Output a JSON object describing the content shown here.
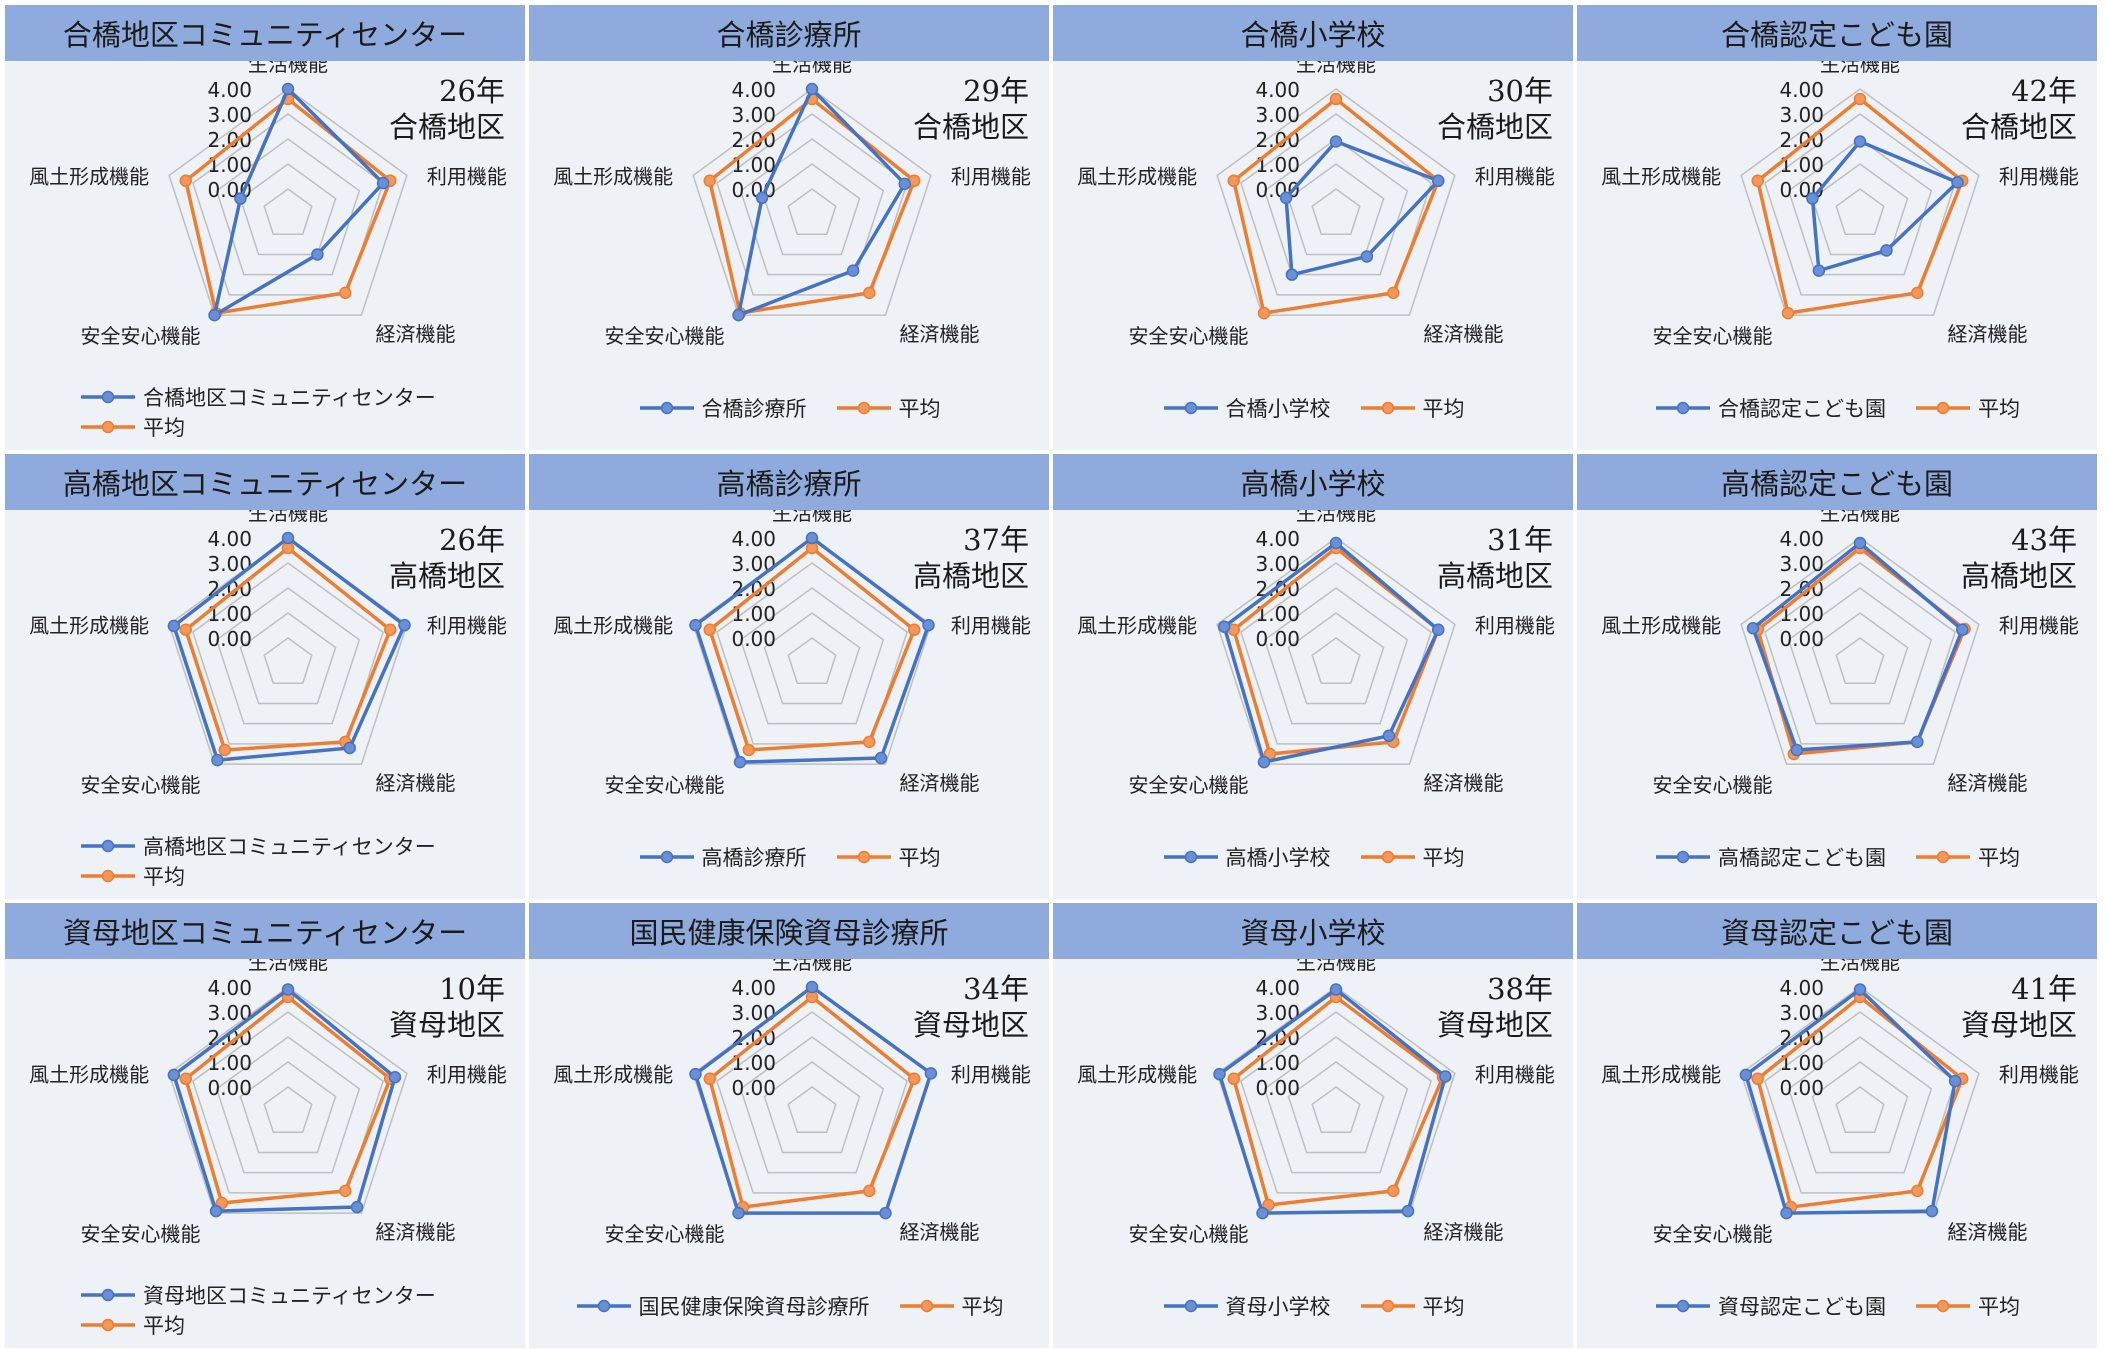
{
  "colors": {
    "facility": "#4472c4",
    "average": "#ed7d31",
    "header": "#8faadc",
    "grid": "#bfbfbf",
    "panel_bg": "#eef1f6"
  },
  "chart_data": [
    {
      "type": "radar",
      "title": "合橋地区コミュニティセンター",
      "age": "26年",
      "district": "合橋地区",
      "axes": [
        "生活機能",
        "利用機能",
        "経済機能",
        "安全安心機能",
        "風土形成機能"
      ],
      "ticks": [
        "4.00",
        "3.00",
        "2.00",
        "1.00",
        "0.00"
      ],
      "rmax": 4,
      "series": [
        {
          "name": "合橋地区コミュニティセンター",
          "values": [
            4.0,
            3.0,
            1.0,
            4.0,
            1.0
          ]
        },
        {
          "name": "平均",
          "values": [
            3.6,
            3.3,
            2.9,
            3.9,
            3.3
          ]
        }
      ]
    },
    {
      "type": "radar",
      "title": "合橋診療所",
      "age": "29年",
      "district": "合橋地区",
      "axes": [
        "生活機能",
        "利用機能",
        "経済機能",
        "安全安心機能",
        "風土形成機能"
      ],
      "ticks": [
        "4.00",
        "3.00",
        "2.00",
        "1.00",
        "0.00"
      ],
      "rmax": 4,
      "series": [
        {
          "name": "合橋診療所",
          "values": [
            4.0,
            2.9,
            1.8,
            4.0,
            1.1
          ]
        },
        {
          "name": "平均",
          "values": [
            3.6,
            3.3,
            2.9,
            3.9,
            3.3
          ]
        }
      ]
    },
    {
      "type": "radar",
      "title": "合橋小学校",
      "age": "30年",
      "district": "合橋地区",
      "axes": [
        "生活機能",
        "利用機能",
        "経済機能",
        "安全安心機能",
        "風土形成機能"
      ],
      "ticks": [
        "4.00",
        "3.00",
        "2.00",
        "1.00",
        "0.00"
      ],
      "rmax": 4,
      "series": [
        {
          "name": "合橋小学校",
          "values": [
            1.9,
            3.3,
            1.1,
            2.0,
            1.1
          ]
        },
        {
          "name": "平均",
          "values": [
            3.6,
            3.3,
            2.9,
            3.9,
            3.3
          ]
        }
      ]
    },
    {
      "type": "radar",
      "title": "合橋認定こども園",
      "age": "42年",
      "district": "合橋地区",
      "axes": [
        "生活機能",
        "利用機能",
        "経済機能",
        "安全安心機能",
        "風土形成機能"
      ],
      "ticks": [
        "4.00",
        "3.00",
        "2.00",
        "1.00",
        "0.00"
      ],
      "rmax": 4,
      "series": [
        {
          "name": "合橋認定こども園",
          "values": [
            1.9,
            3.1,
            0.8,
            1.8,
            1.0
          ]
        },
        {
          "name": "平均",
          "values": [
            3.6,
            3.3,
            2.9,
            3.9,
            3.3
          ]
        }
      ]
    },
    {
      "type": "radar",
      "title": "高橋地区コミュニティセンター",
      "age": "26年",
      "district": "高橋地区",
      "axes": [
        "生活機能",
        "利用機能",
        "経済機能",
        "安全安心機能",
        "風土形成機能"
      ],
      "ticks": [
        "4.00",
        "3.00",
        "2.00",
        "1.00",
        "0.00"
      ],
      "rmax": 4,
      "series": [
        {
          "name": "高橋地区コミュニティセンター",
          "values": [
            4.0,
            3.9,
            3.2,
            3.8,
            3.8
          ]
        },
        {
          "name": "平均",
          "values": [
            3.6,
            3.3,
            2.9,
            3.3,
            3.3
          ]
        }
      ]
    },
    {
      "type": "radar",
      "title": "高橋診療所",
      "age": "37年",
      "district": "高橋地区",
      "axes": [
        "生活機能",
        "利用機能",
        "経済機能",
        "安全安心機能",
        "風土形成機能"
      ],
      "ticks": [
        "4.00",
        "3.00",
        "2.00",
        "1.00",
        "0.00"
      ],
      "rmax": 4,
      "series": [
        {
          "name": "高橋診療所",
          "values": [
            4.0,
            3.9,
            3.7,
            3.9,
            3.9
          ]
        },
        {
          "name": "平均",
          "values": [
            3.6,
            3.3,
            2.9,
            3.3,
            3.3
          ]
        }
      ]
    },
    {
      "type": "radar",
      "title": "高橋小学校",
      "age": "31年",
      "district": "高橋地区",
      "axes": [
        "生活機能",
        "利用機能",
        "経済機能",
        "安全安心機能",
        "風土形成機能"
      ],
      "ticks": [
        "4.00",
        "3.00",
        "2.00",
        "1.00",
        "0.00"
      ],
      "rmax": 4,
      "series": [
        {
          "name": "高橋小学校",
          "values": [
            3.8,
            3.3,
            2.6,
            3.9,
            3.7
          ]
        },
        {
          "name": "平均",
          "values": [
            3.6,
            3.3,
            2.9,
            3.5,
            3.3
          ]
        }
      ]
    },
    {
      "type": "radar",
      "title": "高橋認定こども園",
      "age": "43年",
      "district": "高橋地区",
      "axes": [
        "生活機能",
        "利用機能",
        "経済機能",
        "安全安心機能",
        "風土形成機能"
      ],
      "ticks": [
        "4.00",
        "3.00",
        "2.00",
        "1.00",
        "0.00"
      ],
      "rmax": 4,
      "series": [
        {
          "name": "高橋認定こども園",
          "values": [
            3.8,
            3.3,
            2.9,
            3.3,
            3.5
          ]
        },
        {
          "name": "平均",
          "values": [
            3.6,
            3.4,
            2.9,
            3.5,
            3.3
          ]
        }
      ]
    },
    {
      "type": "radar",
      "title": "資母地区コミュニティセンター",
      "age": "10年",
      "district": "資母地区",
      "axes": [
        "生活機能",
        "利用機能",
        "経済機能",
        "安全安心機能",
        "風土形成機能"
      ],
      "ticks": [
        "4.00",
        "3.00",
        "2.00",
        "1.00",
        "0.00"
      ],
      "rmax": 4,
      "series": [
        {
          "name": "資母地区コミュニティセンター",
          "values": [
            3.9,
            3.5,
            3.7,
            3.9,
            3.8
          ]
        },
        {
          "name": "平均",
          "values": [
            3.6,
            3.3,
            2.9,
            3.5,
            3.3
          ]
        }
      ]
    },
    {
      "type": "radar",
      "title": "国民健康保険資母診療所",
      "age": "34年",
      "district": "資母地区",
      "axes": [
        "生活機能",
        "利用機能",
        "経済機能",
        "安全安心機能",
        "風土形成機能"
      ],
      "ticks": [
        "4.00",
        "3.00",
        "2.00",
        "1.00",
        "0.00"
      ],
      "rmax": 4,
      "series": [
        {
          "name": "国民健康保険資母診療所",
          "values": [
            4.0,
            4.0,
            4.0,
            4.0,
            3.9
          ]
        },
        {
          "name": "平均",
          "values": [
            3.6,
            3.3,
            2.9,
            3.7,
            3.3
          ]
        }
      ]
    },
    {
      "type": "radar",
      "title": "資母小学校",
      "age": "38年",
      "district": "資母地区",
      "axes": [
        "生活機能",
        "利用機能",
        "経済機能",
        "安全安心機能",
        "風土形成機能"
      ],
      "ticks": [
        "4.00",
        "3.00",
        "2.00",
        "1.00",
        "0.00"
      ],
      "rmax": 4,
      "series": [
        {
          "name": "資母小学校",
          "values": [
            3.9,
            3.6,
            3.9,
            4.0,
            3.9
          ]
        },
        {
          "name": "平均",
          "values": [
            3.6,
            3.5,
            2.9,
            3.6,
            3.3
          ]
        }
      ]
    },
    {
      "type": "radar",
      "title": "資母認定こども園",
      "age": "41年",
      "district": "資母地区",
      "axes": [
        "生活機能",
        "利用機能",
        "経済機能",
        "安全安心機能",
        "風土形成機能"
      ],
      "ticks": [
        "4.00",
        "3.00",
        "2.00",
        "1.00",
        "0.00"
      ],
      "rmax": 4,
      "series": [
        {
          "name": "資母認定こども園",
          "values": [
            3.9,
            3.0,
            3.9,
            4.0,
            3.8
          ]
        },
        {
          "name": "平均",
          "values": [
            3.6,
            3.3,
            2.9,
            3.7,
            3.3
          ]
        }
      ]
    }
  ]
}
